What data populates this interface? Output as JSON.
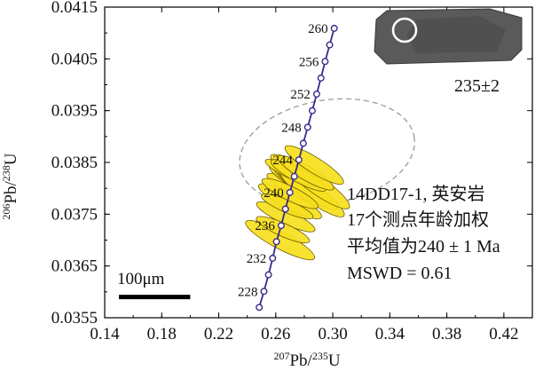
{
  "chart_data": {
    "type": "scatter",
    "subtype": "U-Pb concordia diagram",
    "xlabel": "207Pb/235U",
    "ylabel": "206Pb/238U",
    "xlabel_parts": {
      "sup": "207",
      "base": "Pb/",
      "sup2": "235",
      "end": "U"
    },
    "ylabel_parts": {
      "sup": "206",
      "base": "Pb/",
      "sup2": "238",
      "end": "U"
    },
    "xlim": [
      0.14,
      0.44
    ],
    "ylim": [
      0.0355,
      0.0415
    ],
    "xticks": [
      "0.14",
      "0.18",
      "0.22",
      "0.26",
      "0.30",
      "0.34",
      "0.38",
      "0.42"
    ],
    "yticks": [
      "0.0415",
      "0.0405",
      "0.0395",
      "0.0385",
      "0.0375",
      "0.0365",
      "0.0355"
    ],
    "concordia": {
      "color": "#3a2a8c",
      "points": [
        {
          "age": "226",
          "x": 0.2484,
          "y": 0.0357
        },
        {
          "age": "228",
          "x": 0.2517,
          "y": 0.03601
        },
        {
          "age": "230",
          "x": 0.2549,
          "y": 0.03633
        },
        {
          "age": "232",
          "x": 0.2578,
          "y": 0.03665
        },
        {
          "age": "234",
          "x": 0.2605,
          "y": 0.03697
        },
        {
          "age": "236",
          "x": 0.2638,
          "y": 0.03728
        },
        {
          "age": "238",
          "x": 0.2668,
          "y": 0.0376
        },
        {
          "age": "240",
          "x": 0.2699,
          "y": 0.03792
        },
        {
          "age": "242",
          "x": 0.273,
          "y": 0.03823
        },
        {
          "age": "244",
          "x": 0.2762,
          "y": 0.03855
        },
        {
          "age": "246",
          "x": 0.2793,
          "y": 0.03887
        },
        {
          "age": "248",
          "x": 0.2824,
          "y": 0.03918
        },
        {
          "age": "250",
          "x": 0.2856,
          "y": 0.0395
        },
        {
          "age": "252",
          "x": 0.2887,
          "y": 0.03982
        },
        {
          "age": "254",
          "x": 0.2917,
          "y": 0.04013
        },
        {
          "age": "256",
          "x": 0.2946,
          "y": 0.04045
        },
        {
          "age": "258",
          "x": 0.2978,
          "y": 0.04077
        },
        {
          "age": "260",
          "x": 0.301,
          "y": 0.04109
        }
      ],
      "labeled_ages": [
        "228",
        "232",
        "236",
        "240",
        "244",
        "248",
        "252",
        "256",
        "260"
      ]
    },
    "error_ellipses": {
      "fill": "#f6e01e",
      "items": [
        {
          "x": 0.263,
          "y": 0.037,
          "rx": 0.006,
          "ry": 0.00075,
          "angle": -62
        },
        {
          "x": 0.267,
          "y": 0.03745,
          "rx": 0.005,
          "ry": 0.00062,
          "angle": -65
        },
        {
          "x": 0.27,
          "y": 0.03775,
          "rx": 0.0055,
          "ry": 0.00068,
          "angle": -63
        },
        {
          "x": 0.2735,
          "y": 0.038,
          "rx": 0.0048,
          "ry": 0.0006,
          "angle": -64
        },
        {
          "x": 0.2765,
          "y": 0.0381,
          "rx": 0.0052,
          "ry": 0.00066,
          "angle": -60
        },
        {
          "x": 0.279,
          "y": 0.03805,
          "rx": 0.005,
          "ry": 0.00064,
          "angle": -58
        },
        {
          "x": 0.282,
          "y": 0.038,
          "rx": 0.0056,
          "ry": 0.0007,
          "angle": -56
        },
        {
          "x": 0.2855,
          "y": 0.0379,
          "rx": 0.006,
          "ry": 0.00075,
          "angle": -55
        },
        {
          "x": 0.2895,
          "y": 0.03805,
          "rx": 0.0062,
          "ry": 0.00074,
          "angle": -55
        },
        {
          "x": 0.272,
          "y": 0.0383,
          "rx": 0.0046,
          "ry": 0.00058,
          "angle": -66
        },
        {
          "x": 0.275,
          "y": 0.0384,
          "rx": 0.0045,
          "ry": 0.00056,
          "angle": -66
        },
        {
          "x": 0.268,
          "y": 0.03765,
          "rx": 0.0044,
          "ry": 0.00054,
          "angle": -67
        },
        {
          "x": 0.265,
          "y": 0.0372,
          "rx": 0.0046,
          "ry": 0.00056,
          "angle": -66
        },
        {
          "x": 0.27,
          "y": 0.0379,
          "rx": 0.005,
          "ry": 0.0006,
          "angle": -64
        },
        {
          "x": 0.276,
          "y": 0.03825,
          "rx": 0.0049,
          "ry": 0.0006,
          "angle": -62
        },
        {
          "x": 0.281,
          "y": 0.0383,
          "rx": 0.005,
          "ry": 0.00062,
          "angle": -60
        },
        {
          "x": 0.287,
          "y": 0.03845,
          "rx": 0.0055,
          "ry": 0.00066,
          "angle": -58
        }
      ]
    },
    "mean_ellipse": {
      "x": 0.296,
      "y": 0.0387,
      "rx": 0.062,
      "ry": 0.001,
      "angle": -10,
      "style": "dashed gray"
    },
    "inset": {
      "caption": "235±2",
      "description": "zircon CL image with analysis spot"
    },
    "annotation_lines": [
      "14DD17-1, 英安岩",
      "17个测点年龄加权",
      "平均值为240 ± 1 Ma",
      "MSWD = 0.61"
    ],
    "scale_bar": {
      "label": "100μm",
      "x_start": 0.15,
      "x_end": 0.2,
      "y": 0.0359
    },
    "colors": {
      "concordia": "#3a2a8c",
      "ellipse_fill": "#f6e01e",
      "ellipse_stroke": "#6b5a00",
      "axis": "#000000",
      "dashed_ellipse": "#9a9a9a"
    }
  }
}
